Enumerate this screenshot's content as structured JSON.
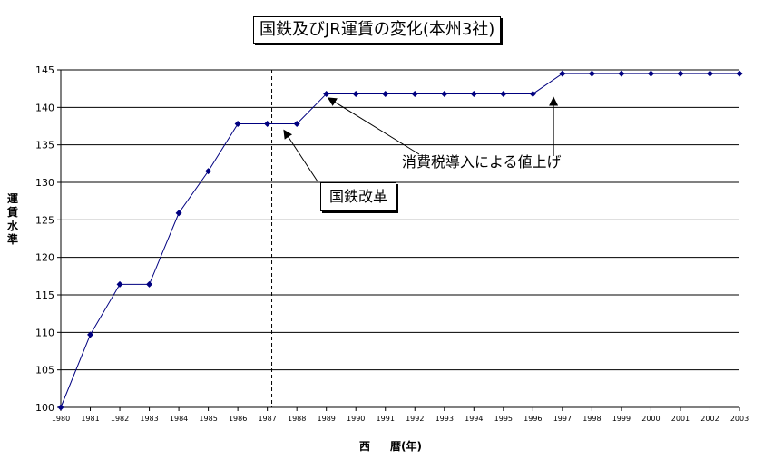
{
  "chart_data": {
    "type": "line",
    "title": "国鉄及びJR運賃の変化(本州3社)",
    "xlabel": "西 暦(年)",
    "xlabel_parts": [
      "西",
      "暦(年)"
    ],
    "ylabel": "運賃水準",
    "ylabel_chars": [
      "運",
      "賃",
      "水",
      "準"
    ],
    "ylim": [
      100,
      145
    ],
    "yticks": [
      100,
      105,
      110,
      115,
      120,
      125,
      130,
      135,
      140,
      145
    ],
    "grid": true,
    "legend": "none",
    "series": [
      {
        "color": "#000080",
        "x": [
          1980,
          1981,
          1982,
          1983,
          1984,
          1985,
          1986,
          1987,
          1988,
          1989,
          1990,
          1991,
          1992,
          1993,
          1994,
          1995,
          1996,
          1997,
          1998,
          1999,
          2000,
          2001,
          2002,
          2003
        ],
        "values": [
          100,
          109.7,
          116.4,
          116.4,
          125.9,
          131.5,
          137.8,
          137.8,
          137.8,
          141.8,
          141.8,
          141.8,
          141.8,
          141.8,
          141.8,
          141.8,
          141.8,
          144.5,
          144.5,
          144.5,
          144.5,
          144.5,
          144.5,
          144.5
        ]
      }
    ],
    "reference_line": {
      "x": 1987.15,
      "style": "dashed"
    },
    "annotations": [
      {
        "text": "国鉄改革",
        "boxed": true,
        "points_to": {
          "x": 1987.5,
          "y": 137.2
        }
      },
      {
        "text": "消費税導入による値上げ",
        "boxed": false,
        "points_to": [
          {
            "x": 1989,
            "y": 141.5
          },
          {
            "x": 1996.7,
            "y": 141.8
          }
        ]
      }
    ]
  }
}
